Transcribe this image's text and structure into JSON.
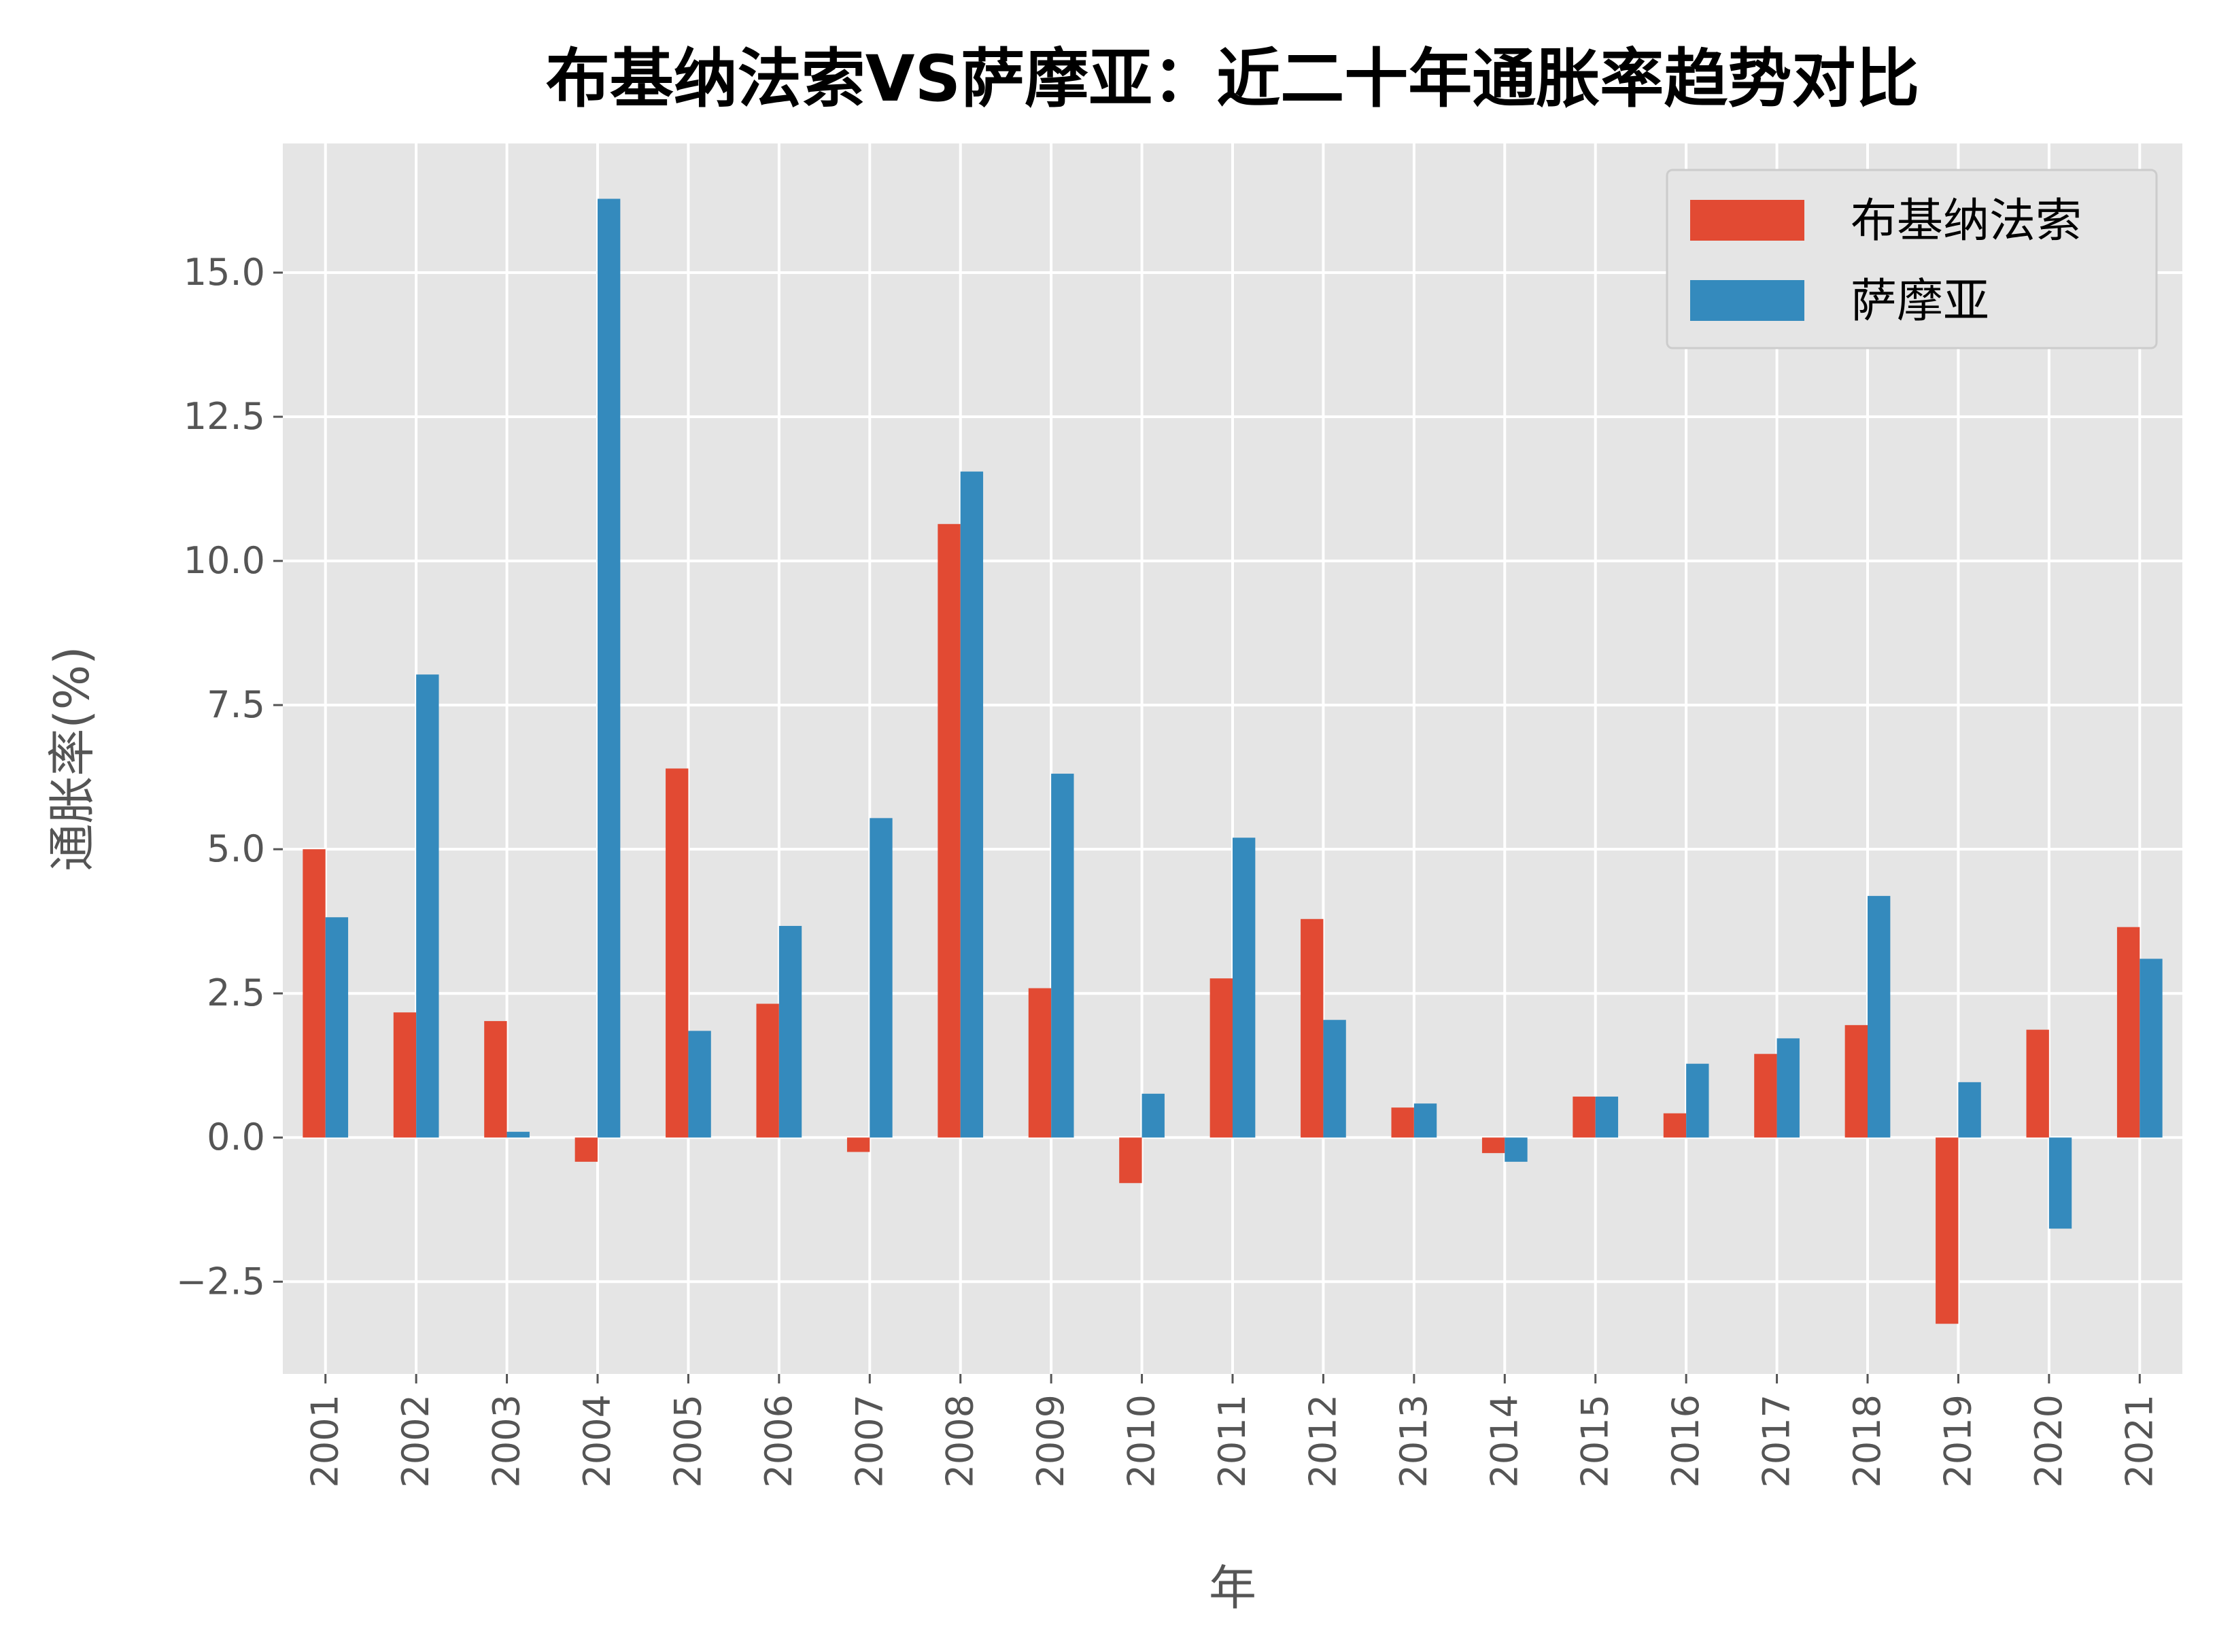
{
  "chart_data": {
    "type": "bar",
    "title": "布基纳法索VS萨摩亚：近二十年通胀率趋势对比",
    "xlabel": "年",
    "ylabel": "通胀率(%)",
    "categories": [
      "2001",
      "2002",
      "2003",
      "2004",
      "2005",
      "2006",
      "2007",
      "2008",
      "2009",
      "2010",
      "2011",
      "2012",
      "2013",
      "2014",
      "2015",
      "2016",
      "2017",
      "2018",
      "2019",
      "2020",
      "2021"
    ],
    "series": [
      {
        "name": "布基纳法索",
        "color": "#E24A33",
        "values": [
          5.0,
          2.17,
          2.02,
          -0.42,
          6.4,
          2.32,
          -0.25,
          10.64,
          2.59,
          -0.79,
          2.76,
          3.79,
          0.52,
          -0.27,
          0.71,
          0.42,
          1.45,
          1.95,
          -3.23,
          1.87,
          3.65
        ]
      },
      {
        "name": "萨摩亚",
        "color": "#348ABD",
        "values": [
          3.82,
          8.03,
          0.1,
          16.28,
          1.85,
          3.67,
          5.54,
          11.55,
          6.31,
          0.76,
          5.2,
          2.04,
          0.59,
          -0.42,
          0.71,
          1.28,
          1.72,
          4.19,
          0.96,
          -1.58,
          3.1
        ]
      }
    ],
    "yticks": [
      "−2.5",
      "0.0",
      "2.5",
      "5.0",
      "7.5",
      "10.0",
      "12.5",
      "15.0"
    ],
    "ytick_values": [
      -2.5,
      0,
      2.5,
      5,
      7.5,
      10,
      12.5,
      15
    ],
    "ylim": [
      -4.1,
      17.24
    ],
    "grid": true,
    "legend_position": "top-right",
    "background": "#E5E5E5"
  }
}
